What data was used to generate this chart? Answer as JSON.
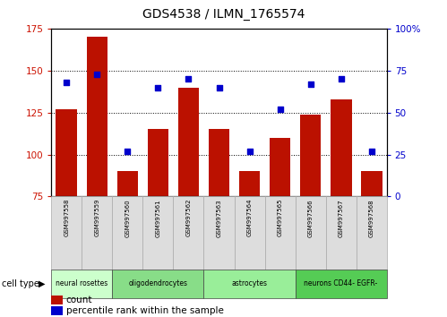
{
  "title": "GDS4538 / ILMN_1765574",
  "samples": [
    "GSM997558",
    "GSM997559",
    "GSM997560",
    "GSM997561",
    "GSM997562",
    "GSM997563",
    "GSM997564",
    "GSM997565",
    "GSM997566",
    "GSM997567",
    "GSM997568"
  ],
  "counts": [
    127,
    170,
    90,
    115,
    140,
    115,
    90,
    110,
    124,
    133,
    90
  ],
  "percentile_ranks": [
    68,
    73,
    27,
    65,
    70,
    65,
    27,
    52,
    67,
    70,
    27
  ],
  "ylim_left": [
    75,
    175
  ],
  "ylim_right": [
    0,
    100
  ],
  "yticks_left": [
    75,
    100,
    125,
    150,
    175
  ],
  "yticks_right": [
    0,
    25,
    50,
    75,
    100
  ],
  "cell_types": [
    {
      "label": "neural rosettes",
      "start": 0,
      "end": 2,
      "color": "#ccffcc"
    },
    {
      "label": "oligodendrocytes",
      "start": 2,
      "end": 5,
      "color": "#88dd88"
    },
    {
      "label": "astrocytes",
      "start": 5,
      "end": 8,
      "color": "#99ee99"
    },
    {
      "label": "neurons CD44- EGFR-",
      "start": 8,
      "end": 11,
      "color": "#55cc55"
    }
  ],
  "bar_color": "#bb1100",
  "dot_color": "#0000cc",
  "bar_bottom": 75,
  "tick_color_left": "#cc1100",
  "tick_color_right": "#0000cc",
  "grid_color": "#000000",
  "sample_box_color": "#dddddd",
  "sample_box_edge": "#aaaaaa",
  "right_ytick_labels": [
    "0",
    "25",
    "50",
    "75",
    "100%"
  ]
}
